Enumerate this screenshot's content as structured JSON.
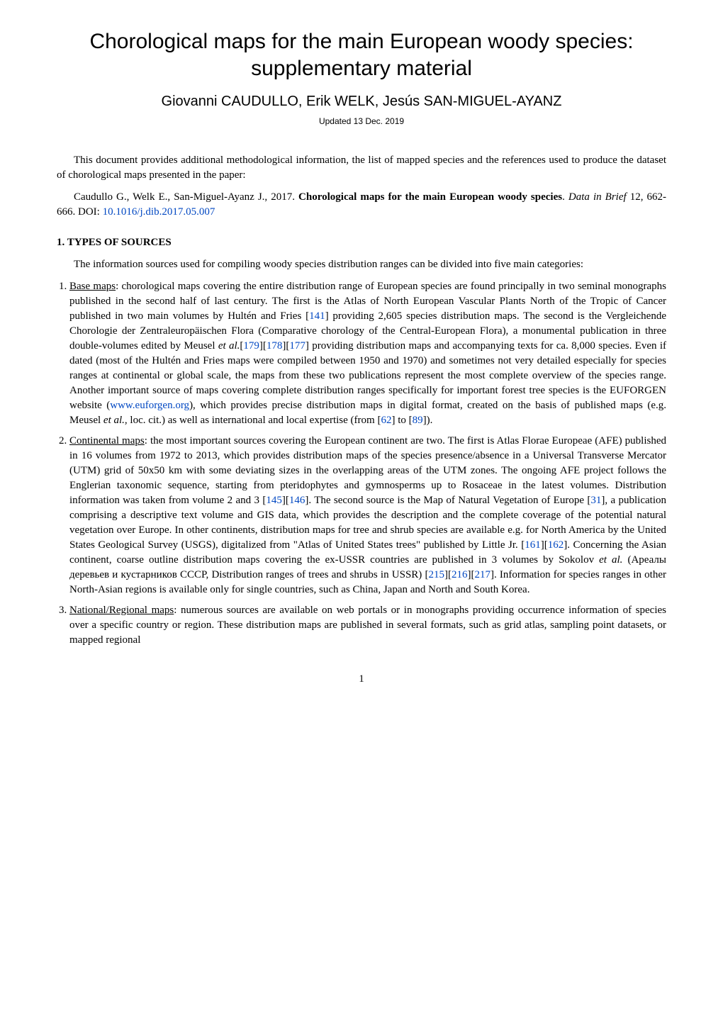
{
  "title": "Chorological maps for the main European woody species: supplementary material",
  "authors": "Giovanni CAUDULLO, Erik WELK, Jesús SAN-MIGUEL-AYANZ",
  "date": "Updated 13 Dec. 2019",
  "intro1": "This document provides additional methodological information, the list of mapped species and the references used to produce the dataset of chorological maps presented in the paper:",
  "intro2_prefix": "Caudullo G., Welk E., San-Miguel-Ayanz J., 2017. ",
  "intro2_bold": "Chorological maps for the main European woody species",
  "intro2_after": ". ",
  "intro2_ital": "Data in Brief",
  "intro2_tail": " 12, 662-666. DOI: ",
  "doi": "10.1016/j.dib.2017.05.007",
  "sec1_head": "1. TYPES OF SOURCES",
  "sec1_intro": "The information sources used for compiling woody species distribution ranges can be divided into five main categories:",
  "li1_label": "Base maps",
  "li1_a": ": chorological maps covering the entire distribution range of European species are found principally in two seminal monographs published in the second half of last century. The first is the Atlas of North European Vascular Plants North of the Tropic of Cancer published in two main volumes by Hultén and Fries [",
  "r141": "141",
  "li1_b": "] providing 2,605 species distribution maps. The second is the Vergleichende Chorologie der Zentraleuropäischen Flora (Comparative chorology of the Central-European Flora), a monumental publication in three double-volumes edited by Meusel ",
  "etal": "et al.",
  "li1_c": "[",
  "r179": "179",
  "li1_d": "][",
  "r178": "178",
  "li1_e": "][",
  "r177": "177",
  "li1_f": "] providing distribution maps and accompanying texts for ca. 8,000 species. Even if dated (most of the Hultén and Fries maps were compiled between 1950 and 1970) and sometimes not very detailed especially for species ranges at continental or global scale, the maps from these two publications represent the most complete overview of the species range. Another important source of maps covering complete distribution ranges specifically for important forest tree species is the EUFORGEN website (",
  "euforgen": "www.euforgen.org",
  "li1_g": "), which provides precise distribution maps in digital format, created on the basis of published maps (e.g. Meusel ",
  "li1_h": ", loc. cit.) as well as international and local expertise (from [",
  "r62": "62",
  "li1_i": "] to [",
  "r89": "89",
  "li1_j": "]).",
  "li2_label": "Continental maps",
  "li2_a": ": the most important sources covering the European continent are two. The first is Atlas Florae Europeae (AFE) published in 16 volumes from 1972 to 2013, which provides distribution maps of the species presence/absence in a Universal Transverse Mercator (UTM) grid of 50x50 km with some deviating sizes in the overlapping areas of the UTM zones. The ongoing AFE project follows the Englerian taxonomic sequence, starting from pteridophytes and gymnosperms up to Rosaceae in the latest volumes. Distribution information was taken from volume 2 and 3 [",
  "r145": "145",
  "li2_b": "][",
  "r146": "146",
  "li2_c": "]. The second source is the Map of Natural Vegetation of Europe [",
  "r31": "31",
  "li2_d": "], a publication comprising a descriptive text volume and GIS data, which provides the description and the complete coverage of the potential natural vegetation over Europe. In other continents, distribution maps for tree and shrub species are available e.g. for North America by the United States Geological Survey (USGS), digitalized from \"Atlas of United States trees\" published by Little Jr. [",
  "r161": "161",
  "li2_e": "][",
  "r162": "162",
  "li2_f": "]. Concerning the Asian continent, coarse outline distribution maps covering the ex-USSR countries are published in 3 volumes by Sokolov ",
  "li2_g": " (Ареалы деревьев и кустарников СССР, Distribution ranges of trees and shrubs in USSR) [",
  "r215": "215",
  "li2_h": "][",
  "r216": "216",
  "li2_i": "][",
  "r217": "217",
  "li2_j": "]. Information for species ranges in other North-Asian regions is available only for single countries, such as China, Japan and North and South Korea.",
  "li3_label": "National/Regional maps",
  "li3_a": ": numerous sources are available on web portals or in monographs providing occurrence information of species over a specific country or region. These distribution maps are published in several formats, such as grid atlas, sampling point datasets, or mapped regional",
  "pagenum": "1"
}
